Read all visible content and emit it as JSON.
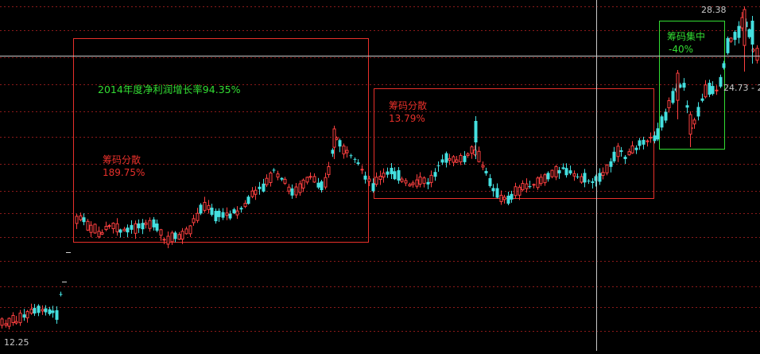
{
  "chart_data": {
    "type": "candlestick",
    "y_scale": "log",
    "price_markers": {
      "high": "28.38",
      "low": "12.25",
      "right": "24.73 - 2"
    },
    "annotations": [
      {
        "id": "profit",
        "text": "2014年度净利润增长率94.35%",
        "color": "#33dd33"
      },
      {
        "id": "box1",
        "title": "筹码分散",
        "value": "189.75%",
        "color": "#e8302a"
      },
      {
        "id": "box2",
        "title": "筹码分散",
        "value": "13.79%",
        "color": "#e8302a"
      },
      {
        "id": "box3",
        "title": "筹码集中",
        "value": "-40%",
        "color": "#33dd33"
      }
    ],
    "colors": {
      "up": "#ff4040",
      "down": "#44e0e0",
      "background": "#000000",
      "grid": "#8b1a1a"
    }
  }
}
